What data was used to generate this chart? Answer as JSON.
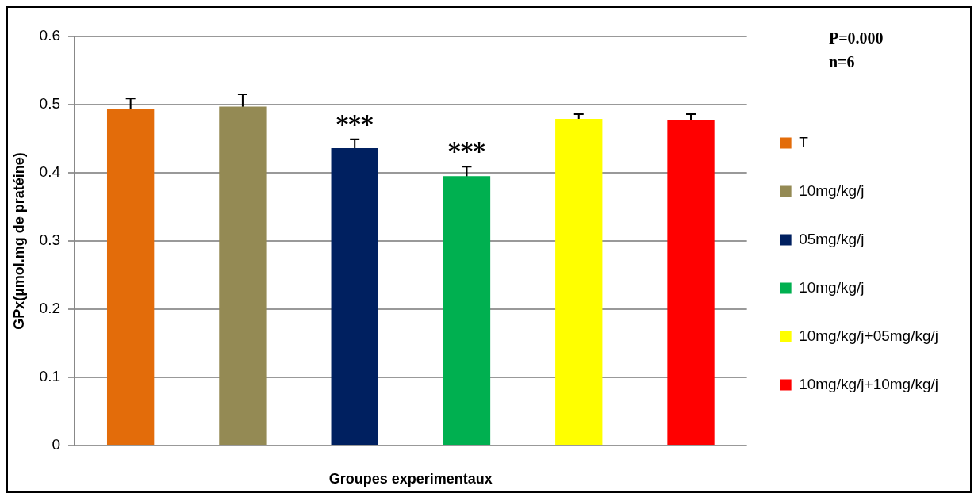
{
  "chart_data": {
    "type": "bar",
    "ylabel": "GPx(µmol.mg de pratéine)",
    "xlabel": "Groupes experimentaux",
    "categories": [
      null,
      null,
      null,
      null,
      null,
      null
    ],
    "series": [
      {
        "name": "T",
        "color": "#e36c0a",
        "values": [
          0.494,
          null,
          null,
          null,
          null,
          null
        ],
        "errors": [
          0.015,
          null,
          null,
          null,
          null,
          null
        ]
      },
      {
        "name": "10mg/kg/j",
        "color": "#948a54",
        "values": [
          null,
          0.497,
          null,
          null,
          null,
          null
        ],
        "errors": [
          null,
          0.018,
          null,
          null,
          null,
          null
        ]
      },
      {
        "name": "05mg/kg/j",
        "color": "#002060",
        "values": [
          null,
          null,
          0.436,
          null,
          null,
          null
        ],
        "errors": [
          null,
          null,
          0.013,
          null,
          null,
          null
        ],
        "value_labels": [
          null,
          null,
          "***",
          null,
          null,
          null
        ]
      },
      {
        "name": "10mg/kg/j",
        "color": "#00b050",
        "values": [
          null,
          null,
          null,
          0.395,
          null,
          null
        ],
        "errors": [
          null,
          null,
          null,
          0.014,
          null,
          null
        ],
        "value_labels": [
          null,
          null,
          null,
          "***",
          null,
          null
        ]
      },
      {
        "name": "10mg/kg/j+05mg/kg/j",
        "color": "#ffff00",
        "values": [
          null,
          null,
          null,
          null,
          0.479,
          null
        ],
        "errors": [
          null,
          null,
          null,
          null,
          0.007,
          null
        ]
      },
      {
        "name": "10mg/kg/j+10mg/kg/j",
        "color": "#ff0000",
        "values": [
          null,
          null,
          null,
          null,
          null,
          0.478
        ],
        "errors": [
          null,
          null,
          null,
          null,
          null,
          0.008
        ]
      }
    ],
    "ylim": [
      0,
      0.6
    ],
    "yticks": [
      0,
      0.1,
      0.2,
      0.3,
      0.4,
      0.5,
      0.6
    ],
    "grid": "y",
    "legend": "right",
    "annotations": [
      "P=0.000",
      "n=6"
    ]
  }
}
